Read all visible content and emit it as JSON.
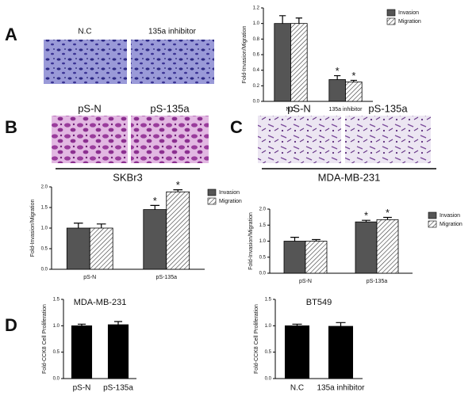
{
  "panel_labels": [
    "A",
    "B",
    "C",
    "D"
  ],
  "images": [
    {
      "label": "N.C"
    },
    {
      "label": "135a inhibitor"
    },
    {
      "label": "pS-N"
    },
    {
      "label": "pS-135a"
    },
    {
      "label": "pS-N"
    },
    {
      "label": "pS-135a"
    }
  ],
  "cell_lines": [
    "SKBr3",
    "MDA-MB-231"
  ],
  "chart_data": [
    {
      "type": "bar",
      "ylabel": "Fold-Invasion/Migration",
      "categories": [
        "N.C",
        "135a inhibitor"
      ],
      "series": [
        {
          "name": "Invasion",
          "color": "#555555",
          "values": [
            1.0,
            0.28
          ],
          "errors": [
            0.1,
            0.05
          ],
          "annotations": [
            null,
            "*"
          ]
        },
        {
          "name": "Migration",
          "color": "#ffffff",
          "hatch": true,
          "values": [
            1.0,
            0.25
          ],
          "errors": [
            0.07,
            0.02
          ],
          "annotations": [
            null,
            "*"
          ]
        }
      ],
      "ylim": [
        0,
        1.2
      ],
      "yticks": [
        {
          "value": 0,
          "label": "0.0"
        },
        {
          "value": 0.2,
          "label": "0.2"
        },
        {
          "value": 0.4,
          "label": "0.4"
        },
        {
          "value": 0.6,
          "label": "0.6"
        },
        {
          "value": 0.8,
          "label": "0.8"
        },
        {
          "value": 1.0,
          "label": "1.0"
        },
        {
          "value": 1.2,
          "label": "1.2"
        }
      ]
    },
    {
      "type": "bar",
      "ylabel": "Fold-Invasion/Migration",
      "categories": [
        "pS-N",
        "pS-135a"
      ],
      "series": [
        {
          "name": "Invasion",
          "color": "#555555",
          "values": [
            1.0,
            1.45
          ],
          "errors": [
            0.12,
            0.1
          ],
          "annotations": [
            null,
            "*"
          ]
        },
        {
          "name": "Migration",
          "color": "#ffffff",
          "hatch": true,
          "values": [
            1.0,
            1.88
          ],
          "errors": [
            0.1,
            0.05
          ],
          "annotations": [
            null,
            "*"
          ]
        }
      ],
      "ylim": [
        0,
        2.0
      ],
      "yticks": [
        {
          "value": 0,
          "label": "0.0"
        },
        {
          "value": 0.5,
          "label": "0.5"
        },
        {
          "value": 1.0,
          "label": "1.0"
        },
        {
          "value": 1.5,
          "label": "1.5"
        },
        {
          "value": 2.0,
          "label": "2.0"
        }
      ]
    },
    {
      "type": "bar",
      "ylabel": "Fold-Invasion/Migration",
      "categories": [
        "pS-N",
        "pS-135a"
      ],
      "series": [
        {
          "name": "Invasion",
          "color": "#555555",
          "values": [
            1.0,
            1.6
          ],
          "errors": [
            0.12,
            0.05
          ],
          "annotations": [
            null,
            "*"
          ]
        },
        {
          "name": "Migration",
          "color": "#ffffff",
          "hatch": true,
          "values": [
            1.0,
            1.67
          ],
          "errors": [
            0.05,
            0.07
          ],
          "annotations": [
            null,
            "*"
          ]
        }
      ],
      "ylim": [
        0,
        2.0
      ],
      "yticks": [
        {
          "value": 0,
          "label": "0.0"
        },
        {
          "value": 0.5,
          "label": "0.5"
        },
        {
          "value": 1.0,
          "label": "1.0"
        },
        {
          "value": 1.5,
          "label": "1.5"
        },
        {
          "value": 2.0,
          "label": "2.0"
        }
      ]
    },
    {
      "type": "bar",
      "title": "MDA-MB-231",
      "ylabel": "Fold-CCK8 Cell Proliferation",
      "categories": [
        "pS-N",
        "pS-135a"
      ],
      "series": [
        {
          "color": "#000000",
          "values": [
            1.0,
            1.02
          ],
          "errors": [
            0.03,
            0.06
          ]
        }
      ],
      "ylim": [
        0,
        1.5
      ],
      "yticks": [
        {
          "value": 0,
          "label": "0.0"
        },
        {
          "value": 0.5,
          "label": "0.5"
        },
        {
          "value": 1.0,
          "label": "1.0"
        },
        {
          "value": 1.5,
          "label": "1.5"
        }
      ]
    },
    {
      "type": "bar",
      "title": "BT549",
      "ylabel": "Fold-CCK8 Cell Proliferation",
      "categories": [
        "N.C",
        "135a inhibitor"
      ],
      "series": [
        {
          "color": "#000000",
          "values": [
            1.0,
            0.99
          ],
          "errors": [
            0.03,
            0.07
          ]
        }
      ],
      "ylim": [
        0,
        1.5
      ],
      "yticks": [
        {
          "value": 0,
          "label": "0.0"
        },
        {
          "value": 0.5,
          "label": "0.5"
        },
        {
          "value": 1.0,
          "label": "1.0"
        },
        {
          "value": 1.5,
          "label": "1.5"
        }
      ]
    }
  ]
}
